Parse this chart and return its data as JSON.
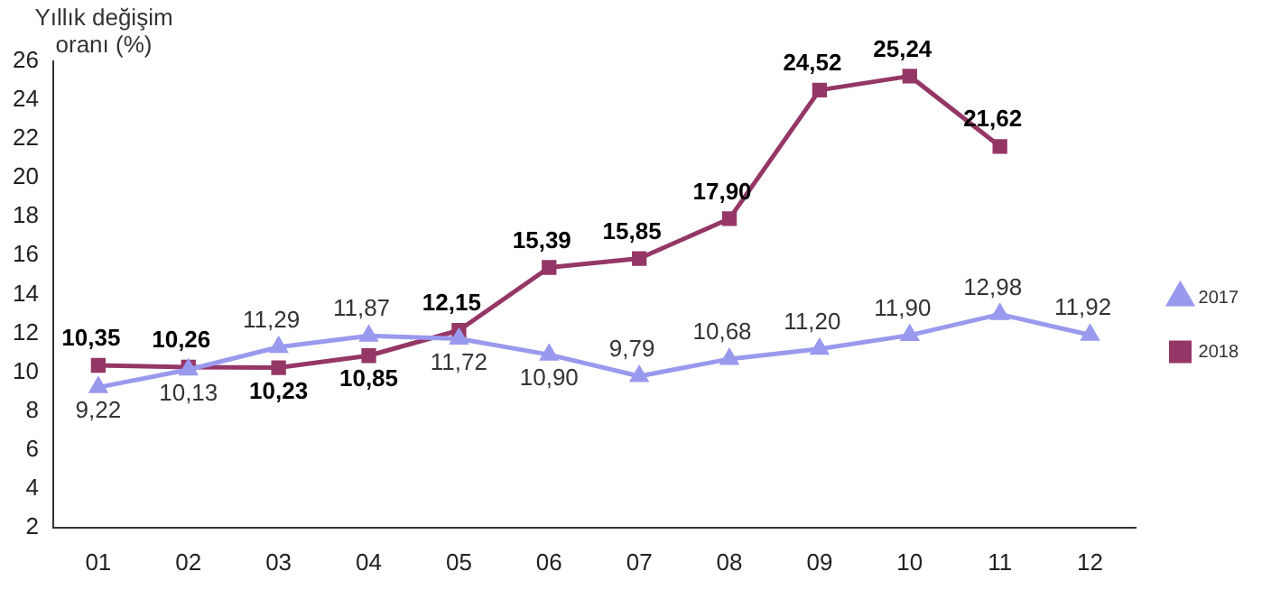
{
  "chart_data": {
    "type": "line",
    "ylabel": "Yıllık değişim oranı (%)",
    "categories": [
      "01",
      "02",
      "03",
      "04",
      "05",
      "06",
      "07",
      "08",
      "09",
      "10",
      "11",
      "12"
    ],
    "series": [
      {
        "name": "2017",
        "color": "#9999ee",
        "marker": "triangle",
        "values": [
          9.22,
          10.13,
          11.29,
          11.87,
          11.72,
          10.9,
          9.79,
          10.68,
          11.2,
          11.9,
          12.98,
          11.92
        ],
        "value_labels": [
          "9,22",
          "10,13",
          "11,29",
          "11,87",
          "11,72",
          "10,90",
          "9,79",
          "10,68",
          "11,20",
          "11,90",
          "12,98",
          "11,92"
        ]
      },
      {
        "name": "2018",
        "color": "#953766",
        "marker": "square",
        "values": [
          10.35,
          10.26,
          10.23,
          10.85,
          12.15,
          15.39,
          15.85,
          17.9,
          24.52,
          25.24,
          21.62,
          null
        ],
        "value_labels": [
          "10,35",
          "10,26",
          "10,23",
          "10,85",
          "12,15",
          "15,39",
          "15,85",
          "17,90",
          "24,52",
          "25,24",
          "21,62",
          null
        ]
      }
    ],
    "ylim": [
      2,
      26
    ],
    "yticks": [
      2,
      4,
      6,
      8,
      10,
      12,
      14,
      16,
      18,
      20,
      22,
      24,
      26
    ],
    "grid": false,
    "legend": "right"
  }
}
